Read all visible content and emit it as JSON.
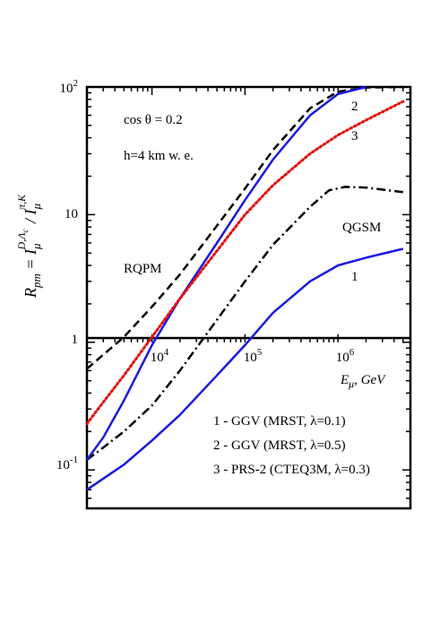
{
  "chart_data": {
    "type": "line",
    "title": "",
    "ylabel": "R_pm = I_μ^(D,Λc) / I_μ^(π,K)",
    "xlabel": "E_μ, GeV",
    "x_scale": "log",
    "y_scale": "log",
    "xlim": [
      2000,
      6000000
    ],
    "ylim": [
      0.05,
      100
    ],
    "x_ticks": [
      {
        "value": 10000,
        "base": "10",
        "exp": "4"
      },
      {
        "value": 100000,
        "base": "10",
        "exp": "5"
      },
      {
        "value": 1000000,
        "base": "10",
        "exp": "6"
      }
    ],
    "y_ticks": [
      {
        "value": 0.1,
        "label_base": "10",
        "label_exp": "-1"
      },
      {
        "value": 1,
        "label_base": "1",
        "label_exp": ""
      },
      {
        "value": 10,
        "label_base": "10",
        "label_exp": ""
      },
      {
        "value": 100,
        "label_base": "10",
        "label_exp": "2"
      }
    ],
    "annotations": {
      "cos_theta": "cos θ = 0.2",
      "depth": "h=4 km w. e.",
      "rqpm": "RQPM",
      "qgsm": "QGSM",
      "num1": "1",
      "num2": "2",
      "num3": "3"
    },
    "legend": [
      {
        "text": "1 - GGV (MRST, λ=0.1)"
      },
      {
        "text": "2 - GGV (MRST, λ=0.5)"
      },
      {
        "text": "3 - PRS-2 (CTEQ3M, λ=0.3)"
      }
    ],
    "series": [
      {
        "id": "rqpm",
        "color": "#000000",
        "dash": "9,5",
        "x": [
          2000,
          3000,
          5000,
          10000,
          20000,
          50000,
          100000,
          200000,
          500000,
          1000000,
          2000000,
          5000000
        ],
        "y": [
          0.62,
          0.8,
          1.1,
          1.9,
          3.4,
          8.2,
          16,
          32,
          68,
          92,
          99,
          100
        ]
      },
      {
        "id": "qgsm",
        "color": "#000000",
        "dash": "10,4,2,4",
        "x": [
          2000,
          3000,
          5000,
          10000,
          20000,
          50000,
          100000,
          200000,
          500000,
          800000,
          1200000,
          2000000,
          5000000
        ],
        "y": [
          0.12,
          0.15,
          0.2,
          0.32,
          0.6,
          1.5,
          3.0,
          5.8,
          11.5,
          15.5,
          16.5,
          16.3,
          15.0
        ]
      },
      {
        "id": "curve1",
        "color": "#1a1adc",
        "dash": "",
        "x": [
          2000,
          5000,
          10000,
          20000,
          50000,
          100000,
          200000,
          500000,
          1000000,
          2000000,
          5000000
        ],
        "y": [
          0.07,
          0.11,
          0.17,
          0.27,
          0.55,
          0.95,
          1.7,
          3.0,
          4.0,
          4.6,
          5.4
        ]
      },
      {
        "id": "curve2",
        "color": "#1a1adc",
        "dash": "",
        "x": [
          2000,
          3000,
          5000,
          10000,
          20000,
          50000,
          100000,
          200000,
          500000,
          1000000,
          2000000
        ],
        "y": [
          0.12,
          0.18,
          0.35,
          0.95,
          2.2,
          6.0,
          13,
          27,
          60,
          88,
          100
        ]
      },
      {
        "id": "curve3",
        "color": "#e21010",
        "dash": "2,3",
        "x": [
          2000,
          3000,
          5000,
          10000,
          20000,
          50000,
          100000,
          200000,
          500000,
          1000000,
          2000000,
          5000000
        ],
        "y": [
          0.23,
          0.34,
          0.55,
          1.1,
          2.2,
          5.2,
          10,
          17,
          30,
          42,
          55,
          77
        ]
      }
    ]
  }
}
